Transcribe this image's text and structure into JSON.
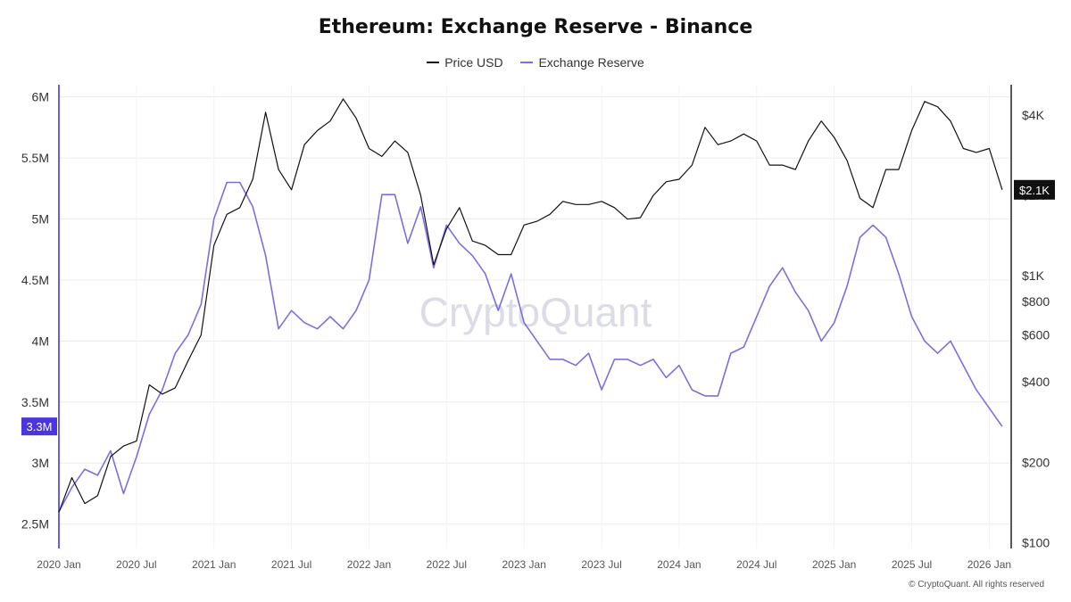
{
  "chart_data": {
    "type": "line",
    "title": "Ethereum: Exchange Reserve - Binance",
    "xlabel": "",
    "ylabel_left": "",
    "ylabel_right": "",
    "x_tick_labels": [
      "2020 Jan",
      "2020 Jul",
      "2021 Jan",
      "2021 Jul",
      "2022 Jan",
      "2022 Jul",
      "2023 Jan",
      "2023 Jul",
      "2024 Jan",
      "2024 Jul",
      "2025 Jan",
      "2025 Jul",
      "2026 Jan"
    ],
    "y_left_tick_labels": [
      "2.5M",
      "3M",
      "3.5M",
      "4M",
      "4.5M",
      "5M",
      "5.5M",
      "6M"
    ],
    "y_left_tick_values": [
      2500000,
      3000000,
      3500000,
      4000000,
      4500000,
      5000000,
      5500000,
      6000000
    ],
    "y_left_range": [
      2300000,
      6100000
    ],
    "y_right_scale": "log",
    "y_right_tick_labels": [
      "$100",
      "$200",
      "$400",
      "$600",
      "$800",
      "$1K",
      "$2K",
      "$4K"
    ],
    "y_right_tick_values": [
      100,
      200,
      400,
      600,
      800,
      1000,
      2000,
      4000
    ],
    "y_right_range": [
      95,
      5200
    ],
    "grid": true,
    "legend_position": "top-center",
    "series": [
      {
        "name": "Price USD",
        "axis": "right",
        "color": "#111111",
        "x": [
          "2020-01",
          "2020-02",
          "2020-03",
          "2020-04",
          "2020-05",
          "2020-06",
          "2020-07",
          "2020-08",
          "2020-09",
          "2020-10",
          "2020-11",
          "2020-12",
          "2021-01",
          "2021-02",
          "2021-03",
          "2021-04",
          "2021-05",
          "2021-06",
          "2021-07",
          "2021-08",
          "2021-09",
          "2021-10",
          "2021-11",
          "2021-12",
          "2022-01",
          "2022-02",
          "2022-03",
          "2022-04",
          "2022-05",
          "2022-06",
          "2022-07",
          "2022-08",
          "2022-09",
          "2022-10",
          "2022-11",
          "2022-12",
          "2023-01",
          "2023-02",
          "2023-03",
          "2023-04",
          "2023-05",
          "2023-06",
          "2023-07",
          "2023-08",
          "2023-09",
          "2023-10",
          "2023-11",
          "2023-12",
          "2024-01",
          "2024-02",
          "2024-03",
          "2024-04",
          "2024-05",
          "2024-06",
          "2024-07",
          "2024-08",
          "2024-09",
          "2024-10",
          "2024-11",
          "2024-12",
          "2025-01",
          "2025-02",
          "2025-03",
          "2025-04",
          "2025-05",
          "2025-06",
          "2025-07",
          "2025-08",
          "2025-09",
          "2025-10",
          "2025-11",
          "2025-12",
          "2026-01",
          "2026-02"
        ],
        "values": [
          130,
          175,
          140,
          150,
          210,
          230,
          240,
          390,
          360,
          380,
          480,
          600,
          1300,
          1700,
          1800,
          2300,
          4100,
          2500,
          2100,
          3100,
          3500,
          3800,
          4600,
          3900,
          3000,
          2800,
          3200,
          2900,
          2000,
          1100,
          1500,
          1800,
          1350,
          1300,
          1200,
          1200,
          1550,
          1600,
          1700,
          1900,
          1850,
          1850,
          1900,
          1800,
          1630,
          1650,
          2000,
          2250,
          2300,
          2600,
          3600,
          3100,
          3200,
          3400,
          3200,
          2600,
          2600,
          2500,
          3200,
          3800,
          3300,
          2700,
          1950,
          1800,
          2500,
          2500,
          3500,
          4500,
          4300,
          3800,
          3000,
          2900,
          3000,
          2100
        ]
      },
      {
        "name": "Exchange Reserve",
        "axis": "left",
        "color": "#7b6fe0",
        "x": [
          "2020-01",
          "2020-02",
          "2020-03",
          "2020-04",
          "2020-05",
          "2020-06",
          "2020-07",
          "2020-08",
          "2020-09",
          "2020-10",
          "2020-11",
          "2020-12",
          "2021-01",
          "2021-02",
          "2021-03",
          "2021-04",
          "2021-05",
          "2021-06",
          "2021-07",
          "2021-08",
          "2021-09",
          "2021-10",
          "2021-11",
          "2021-12",
          "2022-01",
          "2022-02",
          "2022-03",
          "2022-04",
          "2022-05",
          "2022-06",
          "2022-07",
          "2022-08",
          "2022-09",
          "2022-10",
          "2022-11",
          "2022-12",
          "2023-01",
          "2023-02",
          "2023-03",
          "2023-04",
          "2023-05",
          "2023-06",
          "2023-07",
          "2023-08",
          "2023-09",
          "2023-10",
          "2023-11",
          "2023-12",
          "2024-01",
          "2024-02",
          "2024-03",
          "2024-04",
          "2024-05",
          "2024-06",
          "2024-07",
          "2024-08",
          "2024-09",
          "2024-10",
          "2024-11",
          "2024-12",
          "2025-01",
          "2025-02",
          "2025-03",
          "2025-04",
          "2025-05",
          "2025-06",
          "2025-07",
          "2025-08",
          "2025-09",
          "2025-10",
          "2025-11",
          "2025-12",
          "2026-01",
          "2026-02"
        ],
        "values": [
          2600000,
          2800000,
          2950000,
          2900000,
          3100000,
          2750000,
          3050000,
          3400000,
          3600000,
          3900000,
          4050000,
          4300000,
          5000000,
          5300000,
          5300000,
          5100000,
          4700000,
          4100000,
          4250000,
          4150000,
          4100000,
          4200000,
          4100000,
          4250000,
          4500000,
          5200000,
          5200000,
          4800000,
          5100000,
          4600000,
          4950000,
          4800000,
          4700000,
          4550000,
          4250000,
          4550000,
          4150000,
          4000000,
          3850000,
          3850000,
          3800000,
          3900000,
          3600000,
          3850000,
          3850000,
          3800000,
          3850000,
          3700000,
          3800000,
          3600000,
          3550000,
          3550000,
          3900000,
          3950000,
          4200000,
          4450000,
          4600000,
          4400000,
          4250000,
          4000000,
          4150000,
          4450000,
          4850000,
          4950000,
          4850000,
          4550000,
          4200000,
          4000000,
          3900000,
          4000000,
          3800000,
          3600000,
          3450000,
          3300000
        ]
      }
    ],
    "current_value_labels": {
      "left": "3.3M",
      "right": "$2.1K"
    }
  },
  "watermark": "CryptoQuant",
  "credit": "© CryptoQuant. All rights reserved",
  "colors": {
    "price": "#111111",
    "reserve": "#7b6fe0",
    "left_axis": "#6a5cf0",
    "left_badge": "#4a35e0",
    "right_badge": "#111111",
    "grid": "#ececec",
    "watermark": "#dcdce6"
  }
}
